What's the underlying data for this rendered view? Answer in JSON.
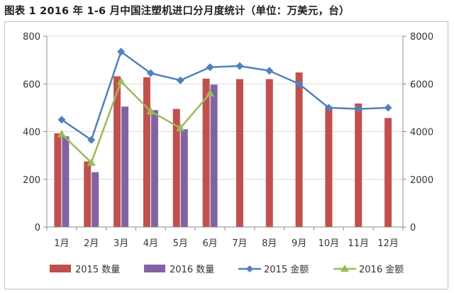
{
  "title": "图表 1   2016 年 1-6 月中国注塑机进口分月度统计（单位：万美元，台）",
  "chart_data": {
    "type": "bar",
    "categories": [
      "1月",
      "2月",
      "3月",
      "4月",
      "5月",
      "6月",
      "7月",
      "8月",
      "9月",
      "10月",
      "11月",
      "12月"
    ],
    "left_axis": {
      "ylim": [
        0,
        800
      ],
      "ticks": [
        0,
        200,
        400,
        600,
        800
      ]
    },
    "right_axis": {
      "ylim": [
        0,
        8000
      ],
      "ticks": [
        0,
        2000,
        4000,
        6000,
        8000
      ]
    },
    "series": [
      {
        "name": "2015 数量",
        "kind": "bar",
        "axis": "left",
        "color": "#c0504d",
        "values": [
          393,
          275,
          632,
          628,
          495,
          622,
          620,
          620,
          648,
          505,
          518,
          457
        ]
      },
      {
        "name": "2016 数量",
        "kind": "bar",
        "axis": "left",
        "color": "#8064a2",
        "values": [
          380,
          230,
          505,
          490,
          410,
          597,
          null,
          null,
          null,
          null,
          null,
          null
        ]
      },
      {
        "name": "2015 金额",
        "kind": "line",
        "axis": "right",
        "color": "#4f81bd",
        "marker": "diamond",
        "values": [
          4500,
          3650,
          7350,
          6450,
          6150,
          6700,
          6750,
          6550,
          6000,
          5000,
          4950,
          5000
        ]
      },
      {
        "name": "2016 金额",
        "kind": "line",
        "axis": "right",
        "color": "#9bbb59",
        "marker": "triangle",
        "values": [
          3900,
          2700,
          6100,
          4850,
          4150,
          5600,
          null,
          null,
          null,
          null,
          null,
          null
        ]
      }
    ],
    "grid": "horizontal",
    "legend": "bottom"
  }
}
